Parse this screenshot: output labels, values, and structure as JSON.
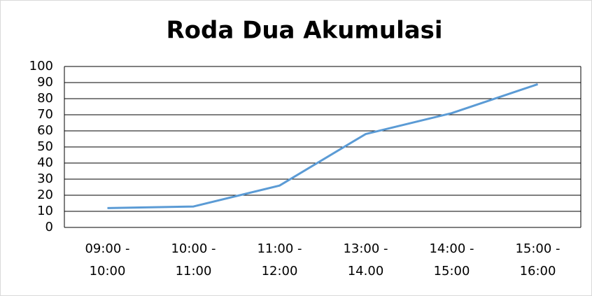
{
  "chart_data": {
    "type": "line",
    "title": "Roda Dua Akumulasi",
    "categories": [
      "09:00 - 10:00",
      "10:00 - 11:00",
      "11:00 - 12:00",
      "13:00 - 14.00",
      "14:00 - 15:00",
      "15:00 - 16:00"
    ],
    "series": [
      {
        "name": "Roda Dua Akumulasi",
        "color": "#5b9bd5",
        "values": [
          12,
          13,
          26,
          58,
          71,
          89
        ]
      }
    ],
    "ylim": [
      0,
      100
    ],
    "yticks": [
      0,
      10,
      20,
      30,
      40,
      50,
      60,
      70,
      80,
      90,
      100
    ],
    "grid": true
  }
}
